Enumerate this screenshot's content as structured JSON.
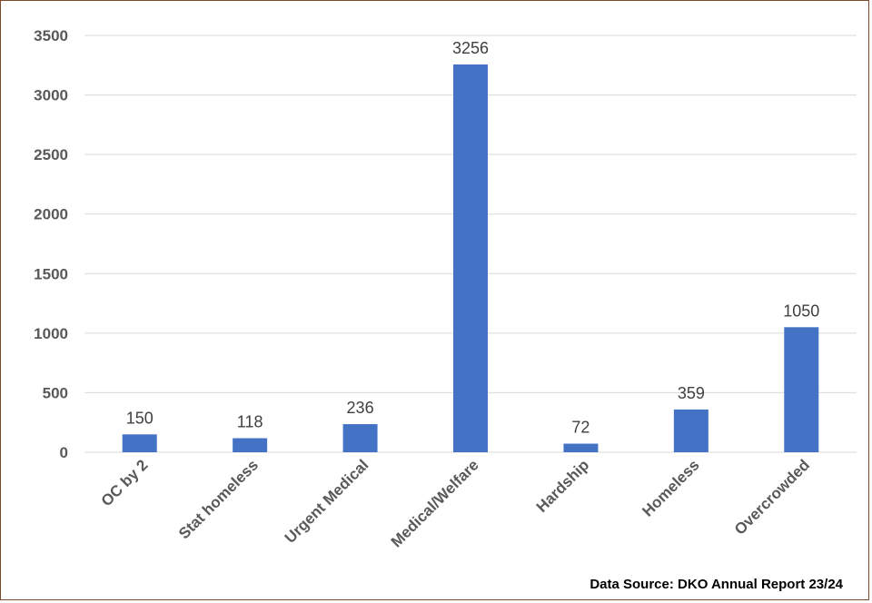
{
  "chart_data": {
    "type": "bar",
    "title": "",
    "xlabel": "",
    "ylabel": "",
    "categories": [
      "OC by 2",
      "Stat homeless",
      "Urgent Medical",
      "Medical/Welfare",
      "Hardship",
      "Homeless",
      "Overcrowded"
    ],
    "values": [
      150,
      118,
      236,
      3256,
      72,
      359,
      1050
    ],
    "data_labels": [
      "150",
      "118",
      "236",
      "3256",
      "72",
      "359",
      "1050"
    ],
    "ylim": [
      0,
      3500
    ],
    "yticks": [
      0,
      500,
      1000,
      1500,
      2000,
      2500,
      3000,
      3500
    ],
    "ytick_labels": [
      "0",
      "500",
      "1000",
      "1500",
      "2000",
      "2500",
      "3000",
      "3500"
    ],
    "grid": true,
    "legend": "none",
    "bar_color": "#4472c4"
  },
  "source_note": "Data Source: DKO Annual Report 23/24",
  "colors": {
    "border": "#7b4a2a",
    "gridline": "#d9d9d9",
    "tick_text": "#595959",
    "label_text": "#404040"
  }
}
